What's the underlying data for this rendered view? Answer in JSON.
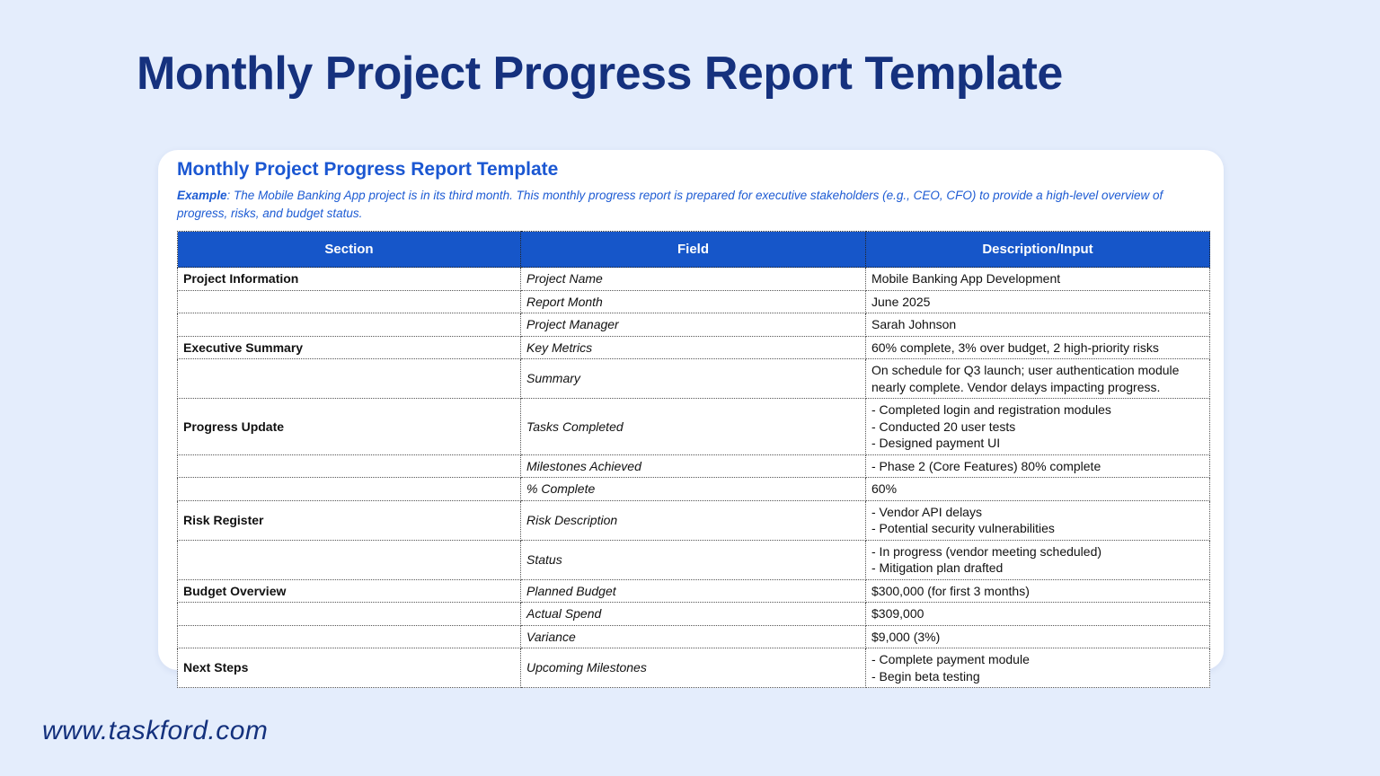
{
  "page": {
    "title": "Monthly Project Progress Report Template",
    "footer_url": "www.taskford.com"
  },
  "card": {
    "heading": "Monthly Project Progress Report Template",
    "example_label": "Example",
    "example_text": ": The Mobile Banking App project is in its third month. This monthly progress report is prepared for executive stakeholders (e.g., CEO, CFO) to provide a high-level overview of progress, risks, and budget status."
  },
  "table": {
    "headers": [
      "Section",
      "Field",
      "Description/Input"
    ],
    "rows": [
      {
        "section": "Project Information",
        "field": "Project Name",
        "description": "Mobile Banking App Development"
      },
      {
        "section": "",
        "field": "Report Month",
        "description": "June 2025"
      },
      {
        "section": "",
        "field": "Project Manager",
        "description": "Sarah Johnson"
      },
      {
        "section": "Executive Summary",
        "field": "Key Metrics",
        "description": "60% complete, 3% over budget, 2 high-priority risks"
      },
      {
        "section": "",
        "field": "Summary",
        "description": "On schedule for Q3 launch; user authentication module nearly complete. Vendor delays impacting progress."
      },
      {
        "section": "Progress Update",
        "field": "Tasks Completed",
        "description": "- Completed login and registration modules\n- Conducted 20 user tests\n- Designed payment UI"
      },
      {
        "section": "",
        "field": "Milestones Achieved",
        "description": "- Phase 2 (Core Features) 80% complete"
      },
      {
        "section": "",
        "field": "% Complete",
        "description": "60%"
      },
      {
        "section": "Risk Register",
        "field": "Risk Description",
        "description": "- Vendor API delays\n- Potential security vulnerabilities"
      },
      {
        "section": "",
        "field": "Status",
        "description": "- In progress (vendor meeting scheduled)\n- Mitigation plan drafted"
      },
      {
        "section": "Budget Overview",
        "field": "Planned Budget",
        "description": "$300,000 (for first 3 months)"
      },
      {
        "section": "",
        "field": "Actual Spend",
        "description": "$309,000"
      },
      {
        "section": "",
        "field": "Variance",
        "description": "$9,000 (3%)"
      },
      {
        "section": "Next Steps",
        "field": "Upcoming Milestones",
        "description": "- Complete payment module\n- Begin beta testing"
      }
    ]
  },
  "colors": {
    "background": "#e4edfc",
    "title_navy": "#15317e",
    "heading_blue": "#1b57d2",
    "table_header_bg": "#1656c9",
    "table_header_text": "#ffffff"
  }
}
